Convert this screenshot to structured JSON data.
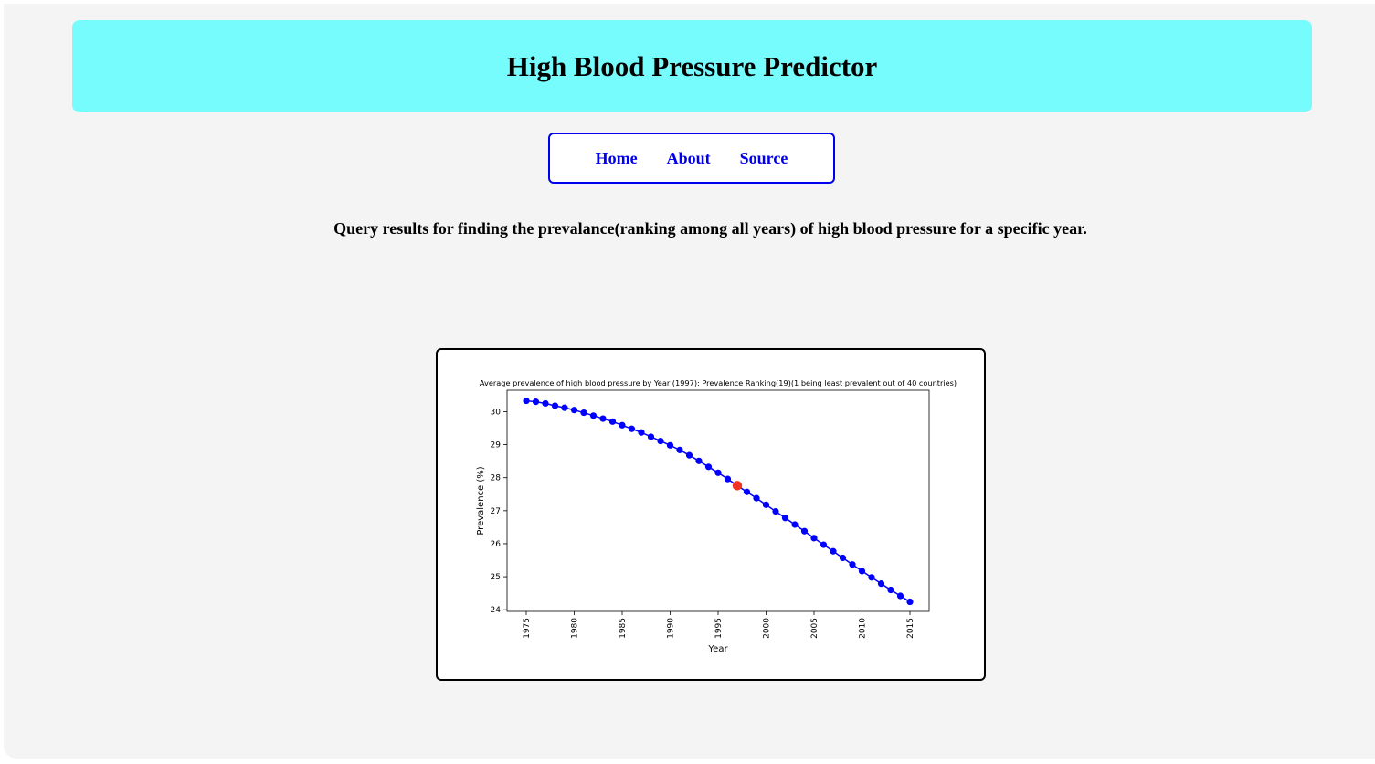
{
  "header": {
    "title": "High Blood Pressure Predictor"
  },
  "nav": {
    "items": [
      {
        "label": "Home"
      },
      {
        "label": "About"
      },
      {
        "label": "Source"
      }
    ]
  },
  "query": {
    "text": "Query results for finding the prevalance(ranking among all years) of high blood pressure for a specific year."
  },
  "colors": {
    "banner": "#77fcfd",
    "nav_link": "#0000ee",
    "series": "#0000ff",
    "highlight": "#ee3322"
  },
  "chart_data": {
    "type": "line",
    "title": "Average prevalence of high blood pressure by Year (1997): Prevalence Ranking(19)(1 being least prevalent out of 40 countries)",
    "xlabel": "Year",
    "ylabel": "Prevalence (%)",
    "xlim": [
      1973,
      2017
    ],
    "ylim": [
      23.95,
      30.65
    ],
    "xticks": [
      1975,
      1980,
      1985,
      1990,
      1995,
      2000,
      2005,
      2010,
      2015
    ],
    "yticks": [
      24,
      25,
      26,
      27,
      28,
      29,
      30
    ],
    "x": [
      1975,
      1976,
      1977,
      1978,
      1979,
      1980,
      1981,
      1982,
      1983,
      1984,
      1985,
      1986,
      1987,
      1988,
      1989,
      1990,
      1991,
      1992,
      1993,
      1994,
      1995,
      1996,
      1997,
      1998,
      1999,
      2000,
      2001,
      2002,
      2003,
      2004,
      2005,
      2006,
      2007,
      2008,
      2009,
      2010,
      2011,
      2012,
      2013,
      2014,
      2015
    ],
    "series": [
      {
        "values": [
          30.33,
          30.3,
          30.25,
          30.18,
          30.12,
          30.05,
          29.97,
          29.88,
          29.79,
          29.7,
          29.59,
          29.48,
          29.37,
          29.24,
          29.11,
          28.98,
          28.84,
          28.68,
          28.51,
          28.33,
          28.15,
          27.96,
          27.76,
          27.57,
          27.38,
          27.18,
          26.98,
          26.78,
          26.58,
          26.38,
          26.17,
          25.97,
          25.77,
          25.57,
          25.37,
          25.17,
          24.98,
          24.79,
          24.6,
          24.42,
          24.24
        ]
      }
    ],
    "highlight": {
      "x": 1997,
      "y": 27.76
    },
    "grid": false,
    "legend": "none"
  }
}
